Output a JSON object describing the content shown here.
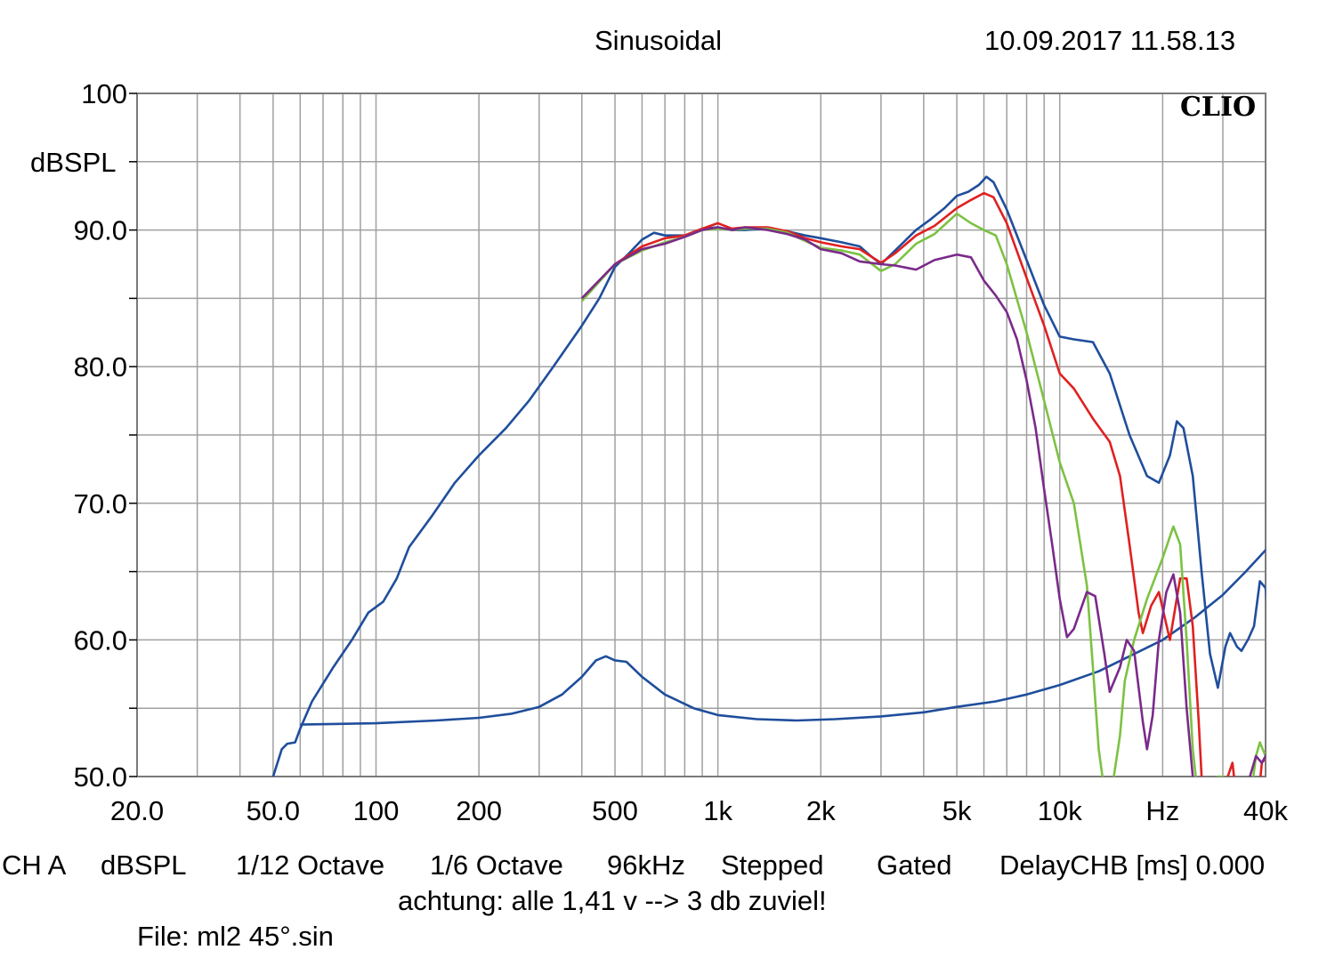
{
  "header": {
    "title": "Sinusoidal",
    "datetime": "10.09.2017 11.58.13",
    "logo": "CLIO"
  },
  "footer": {
    "settings": [
      "CH A",
      "dBSPL",
      "1/12 Octave",
      "1/6 Octave",
      "96kHz",
      "Stepped",
      "Gated",
      "DelayCHB [ms] 0.000"
    ],
    "note": "achtung: alle 1,41 v --> 3 db zuviel!",
    "file": "File: ml2 45°.sin"
  },
  "colors": {
    "grid": "#a0a0a0",
    "blue": "#1f4e9c",
    "red": "#e02020",
    "green": "#7cc242",
    "purple": "#7a2a8a"
  },
  "chart_data": {
    "type": "line",
    "xscale": "log",
    "xlim": [
      20,
      40000
    ],
    "ylim": [
      50,
      100
    ],
    "ylabel": "dBSPL",
    "xunit": "Hz",
    "grid": true,
    "xticks": [
      {
        "v": 20,
        "label": "20.0"
      },
      {
        "v": 50,
        "label": "50.0"
      },
      {
        "v": 100,
        "label": "100"
      },
      {
        "v": 200,
        "label": "200"
      },
      {
        "v": 500,
        "label": "500"
      },
      {
        "v": 1000,
        "label": "1k"
      },
      {
        "v": 2000,
        "label": "2k"
      },
      {
        "v": 5000,
        "label": "5k"
      },
      {
        "v": 10000,
        "label": "10k"
      },
      {
        "v": 20000,
        "label": "Hz"
      },
      {
        "v": 40000,
        "label": "40k"
      }
    ],
    "yticks": [
      {
        "v": 100,
        "label": "100"
      },
      {
        "v": 90,
        "label": "90.0"
      },
      {
        "v": 80,
        "label": "80.0"
      },
      {
        "v": 70,
        "label": "70.0"
      },
      {
        "v": 60,
        "label": "60.0"
      },
      {
        "v": 50,
        "label": "50.0"
      }
    ],
    "series": [
      {
        "color": "#1f4e9c",
        "points": [
          [
            50,
            50
          ],
          [
            53,
            52
          ],
          [
            55,
            52.4
          ],
          [
            58,
            52.5
          ],
          [
            60,
            53.5
          ],
          [
            65,
            55.5
          ],
          [
            75,
            58
          ],
          [
            85,
            60
          ],
          [
            95,
            62
          ],
          [
            105,
            62.8
          ],
          [
            115,
            64.5
          ],
          [
            125,
            66.8
          ],
          [
            145,
            69
          ],
          [
            170,
            71.5
          ],
          [
            200,
            73.5
          ],
          [
            240,
            75.5
          ],
          [
            280,
            77.5
          ],
          [
            330,
            80
          ],
          [
            400,
            83
          ],
          [
            450,
            85
          ],
          [
            500,
            87.3
          ],
          [
            550,
            88.3
          ],
          [
            600,
            89.3
          ],
          [
            650,
            89.8
          ],
          [
            700,
            89.6
          ],
          [
            800,
            89.6
          ],
          [
            900,
            90.1
          ],
          [
            1000,
            90.2
          ],
          [
            1100,
            90
          ],
          [
            1200,
            90
          ],
          [
            1400,
            90.1
          ],
          [
            1600,
            89.9
          ],
          [
            1800,
            89.6
          ],
          [
            2000,
            89.4
          ],
          [
            2300,
            89.1
          ],
          [
            2600,
            88.8
          ],
          [
            2800,
            88.1
          ],
          [
            3000,
            87.5
          ],
          [
            3300,
            88.5
          ],
          [
            3800,
            90
          ],
          [
            4200,
            90.8
          ],
          [
            4600,
            91.6
          ],
          [
            5000,
            92.5
          ],
          [
            5400,
            92.8
          ],
          [
            5800,
            93.3
          ],
          [
            6100,
            93.9
          ],
          [
            6400,
            93.5
          ],
          [
            7000,
            91.5
          ],
          [
            8000,
            87.8
          ],
          [
            9000,
            84.5
          ],
          [
            10000,
            82.2
          ],
          [
            11000,
            82
          ],
          [
            12500,
            81.8
          ],
          [
            14000,
            79.5
          ],
          [
            16000,
            75
          ],
          [
            18000,
            72
          ],
          [
            19500,
            71.5
          ],
          [
            21000,
            73.5
          ],
          [
            22000,
            76
          ],
          [
            23000,
            75.5
          ],
          [
            24500,
            72
          ],
          [
            26000,
            65
          ],
          [
            27500,
            59
          ],
          [
            29000,
            56.5
          ],
          [
            30500,
            59.5
          ],
          [
            31500,
            60.5
          ],
          [
            33000,
            59.5
          ],
          [
            34000,
            59.2
          ],
          [
            35500,
            60
          ],
          [
            37000,
            61
          ],
          [
            38500,
            64.3
          ],
          [
            40000,
            63.8
          ],
          [
            41500,
            59
          ],
          [
            42000,
            55
          ]
        ]
      },
      {
        "color": "#1f4e9c",
        "points": [
          [
            60,
            53.8
          ],
          [
            100,
            53.9
          ],
          [
            150,
            54.1
          ],
          [
            200,
            54.3
          ],
          [
            250,
            54.6
          ],
          [
            300,
            55.1
          ],
          [
            350,
            56
          ],
          [
            400,
            57.3
          ],
          [
            440,
            58.5
          ],
          [
            470,
            58.8
          ],
          [
            500,
            58.5
          ],
          [
            540,
            58.4
          ],
          [
            600,
            57.3
          ],
          [
            700,
            56
          ],
          [
            850,
            55
          ],
          [
            1000,
            54.5
          ],
          [
            1300,
            54.2
          ],
          [
            1700,
            54.1
          ],
          [
            2200,
            54.2
          ],
          [
            3000,
            54.4
          ],
          [
            4000,
            54.7
          ],
          [
            5000,
            55.1
          ],
          [
            6500,
            55.5
          ],
          [
            8000,
            56
          ],
          [
            10000,
            56.7
          ],
          [
            13000,
            57.7
          ],
          [
            16000,
            58.8
          ],
          [
            20000,
            60
          ],
          [
            25000,
            61.7
          ],
          [
            30000,
            63.3
          ],
          [
            35000,
            65
          ],
          [
            41500,
            67
          ]
        ]
      },
      {
        "color": "#e02020",
        "points": [
          [
            400,
            85
          ],
          [
            500,
            87.5
          ],
          [
            600,
            88.8
          ],
          [
            700,
            89.4
          ],
          [
            800,
            89.6
          ],
          [
            900,
            90.1
          ],
          [
            1000,
            90.5
          ],
          [
            1100,
            90.1
          ],
          [
            1200,
            90.2
          ],
          [
            1400,
            90.2
          ],
          [
            1600,
            89.9
          ],
          [
            1800,
            89.4
          ],
          [
            2000,
            89.1
          ],
          [
            2300,
            88.8
          ],
          [
            2600,
            88.6
          ],
          [
            3000,
            87.6
          ],
          [
            3300,
            88.3
          ],
          [
            3800,
            89.6
          ],
          [
            4300,
            90.3
          ],
          [
            5000,
            91.6
          ],
          [
            5500,
            92.2
          ],
          [
            6000,
            92.7
          ],
          [
            6400,
            92.4
          ],
          [
            7000,
            90.5
          ],
          [
            8000,
            86.5
          ],
          [
            9000,
            83
          ],
          [
            10000,
            79.5
          ],
          [
            11000,
            78.4
          ],
          [
            12500,
            76.2
          ],
          [
            14000,
            74.5
          ],
          [
            15000,
            72
          ],
          [
            16000,
            67
          ],
          [
            17000,
            62
          ],
          [
            17500,
            60.5
          ],
          [
            18500,
            62.5
          ],
          [
            19500,
            63.5
          ],
          [
            21000,
            60
          ],
          [
            22500,
            64.5
          ],
          [
            23500,
            64.5
          ],
          [
            24500,
            61
          ],
          [
            25500,
            54
          ],
          [
            26000,
            50
          ],
          [
            26500,
            48
          ],
          [
            30000,
            48
          ],
          [
            31000,
            50
          ],
          [
            32000,
            51
          ],
          [
            33000,
            48
          ],
          [
            38000,
            48
          ],
          [
            39000,
            51
          ],
          [
            40500,
            51.5
          ],
          [
            41500,
            50
          ]
        ]
      },
      {
        "color": "#7cc242",
        "points": [
          [
            400,
            84.8
          ],
          [
            500,
            87.5
          ],
          [
            600,
            88.5
          ],
          [
            700,
            89.1
          ],
          [
            800,
            89.5
          ],
          [
            900,
            90
          ],
          [
            1000,
            90.1
          ],
          [
            1100,
            90
          ],
          [
            1200,
            90.1
          ],
          [
            1400,
            90.1
          ],
          [
            1600,
            89.8
          ],
          [
            1800,
            89.2
          ],
          [
            2000,
            88.7
          ],
          [
            2300,
            88.5
          ],
          [
            2600,
            88.2
          ],
          [
            3000,
            87
          ],
          [
            3300,
            87.5
          ],
          [
            3800,
            89
          ],
          [
            4300,
            89.7
          ],
          [
            5000,
            91.2
          ],
          [
            5500,
            90.5
          ],
          [
            6000,
            90
          ],
          [
            6500,
            89.6
          ],
          [
            7000,
            87.5
          ],
          [
            8000,
            82.5
          ],
          [
            9000,
            77.5
          ],
          [
            10000,
            73
          ],
          [
            11000,
            70
          ],
          [
            12000,
            64
          ],
          [
            12500,
            58
          ],
          [
            13000,
            52
          ],
          [
            13500,
            49
          ],
          [
            14200,
            49
          ],
          [
            15000,
            53
          ],
          [
            15500,
            57
          ],
          [
            16500,
            60
          ],
          [
            18000,
            63
          ],
          [
            20000,
            66
          ],
          [
            21500,
            68.3
          ],
          [
            22500,
            67
          ],
          [
            23500,
            60
          ],
          [
            24500,
            52
          ],
          [
            25500,
            48
          ],
          [
            28000,
            48
          ],
          [
            29000,
            50
          ],
          [
            30000,
            50
          ],
          [
            31000,
            48
          ],
          [
            36000,
            48
          ],
          [
            37500,
            51.5
          ],
          [
            38500,
            52.5
          ],
          [
            40000,
            51.5
          ],
          [
            41500,
            50
          ]
        ]
      },
      {
        "color": "#7a2a8a",
        "points": [
          [
            400,
            85
          ],
          [
            500,
            87.5
          ],
          [
            600,
            88.6
          ],
          [
            700,
            89
          ],
          [
            800,
            89.5
          ],
          [
            900,
            90
          ],
          [
            1000,
            90.2
          ],
          [
            1100,
            90
          ],
          [
            1200,
            90.2
          ],
          [
            1400,
            90
          ],
          [
            1600,
            89.7
          ],
          [
            1800,
            89.3
          ],
          [
            2000,
            88.6
          ],
          [
            2300,
            88.3
          ],
          [
            2600,
            87.7
          ],
          [
            3000,
            87.5
          ],
          [
            3300,
            87.4
          ],
          [
            3800,
            87.1
          ],
          [
            4300,
            87.8
          ],
          [
            5000,
            88.2
          ],
          [
            5500,
            88
          ],
          [
            6000,
            86.3
          ],
          [
            6500,
            85.2
          ],
          [
            7000,
            84
          ],
          [
            7500,
            82
          ],
          [
            8000,
            79
          ],
          [
            8500,
            75.5
          ],
          [
            9000,
            71
          ],
          [
            9500,
            67
          ],
          [
            10000,
            63
          ],
          [
            10500,
            60.2
          ],
          [
            11000,
            60.8
          ],
          [
            12000,
            63.5
          ],
          [
            12700,
            63.2
          ],
          [
            13500,
            59
          ],
          [
            14000,
            56.2
          ],
          [
            15000,
            58
          ],
          [
            15700,
            60
          ],
          [
            16500,
            59.2
          ],
          [
            17500,
            54
          ],
          [
            18000,
            52
          ],
          [
            18700,
            54.5
          ],
          [
            19500,
            60
          ],
          [
            20500,
            63.5
          ],
          [
            21500,
            64.8
          ],
          [
            22500,
            62
          ],
          [
            23500,
            55
          ],
          [
            24500,
            50
          ],
          [
            25000,
            48
          ],
          [
            35000,
            48
          ],
          [
            36000,
            50
          ],
          [
            37500,
            51.5
          ],
          [
            39000,
            51
          ],
          [
            40000,
            51.5
          ],
          [
            41500,
            52.5
          ],
          [
            42000,
            54
          ]
        ]
      }
    ]
  }
}
